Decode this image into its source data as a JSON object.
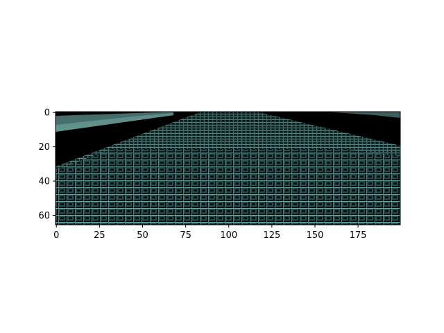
{
  "figure": {
    "background": "#ffffff",
    "image_description_colors": {
      "road_texture": "#5f8f8f",
      "dark": "#000000",
      "highlight": "#a8d5cf"
    },
    "x_axis": {
      "ticks": [
        0,
        25,
        50,
        75,
        100,
        125,
        150,
        175
      ],
      "range": [
        -0.5,
        199.5
      ]
    },
    "y_axis": {
      "ticks": [
        0,
        20,
        40,
        60
      ],
      "range": [
        65.5,
        -0.5
      ],
      "inverted": true
    },
    "image_size": {
      "width": 200,
      "height": 66
    }
  }
}
